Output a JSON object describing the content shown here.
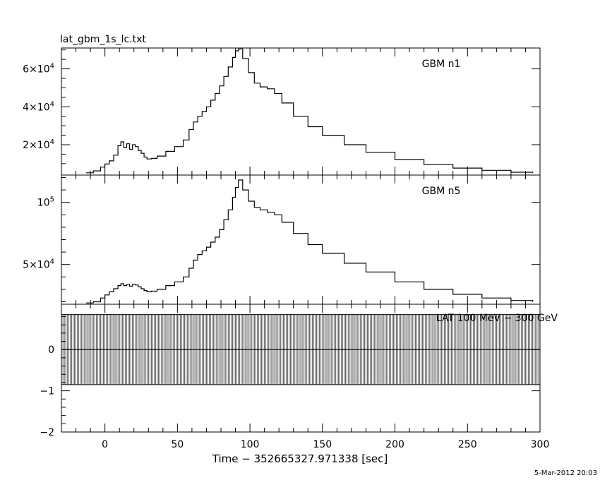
{
  "file_title": "lat_gbm_1s_lc.txt",
  "timestamp": "5-Mar-2012 20:03",
  "x_axis": {
    "label": "Time − 352665327.971338 [sec]",
    "range": [
      -30,
      300
    ],
    "ticks": [
      0,
      50,
      100,
      150,
      200,
      250,
      300
    ],
    "tick_labels": [
      "0",
      "50",
      "100",
      "150",
      "200",
      "250",
      "300"
    ]
  },
  "chart_data": [
    {
      "type": "line",
      "panel": "top",
      "legend": "GBM n1",
      "ylim": [
        4000,
        71000
      ],
      "yticks": [
        20000,
        40000,
        60000
      ],
      "ytick_labels": [
        {
          "mantissa": "2×10",
          "exp": "4"
        },
        {
          "mantissa": "4×10",
          "exp": "4"
        },
        {
          "mantissa": "6×10",
          "exp": "4"
        }
      ],
      "x": [
        -13,
        -8,
        -3,
        0,
        3,
        6,
        9,
        11,
        13,
        15,
        17,
        19,
        21,
        23,
        25,
        27,
        29,
        32,
        36,
        42,
        48,
        54,
        58,
        61,
        64,
        67,
        70,
        73,
        76,
        79,
        82,
        85,
        88,
        90,
        92,
        95,
        99,
        103,
        107,
        112,
        117,
        122,
        130,
        140,
        150,
        165,
        180,
        200,
        220,
        240,
        260,
        280,
        295
      ],
      "values": [
        5200,
        6200,
        8200,
        9800,
        11500,
        14500,
        19500,
        21500,
        18500,
        20500,
        17500,
        20000,
        19000,
        17000,
        15500,
        13500,
        12500,
        12800,
        14000,
        16500,
        19000,
        22500,
        28000,
        32000,
        35000,
        37500,
        40000,
        43500,
        47000,
        51000,
        56000,
        61000,
        66000,
        69500,
        70500,
        65500,
        58000,
        52500,
        50500,
        49500,
        47000,
        42000,
        35000,
        29500,
        25000,
        20000,
        16000,
        12200,
        9500,
        7700,
        6500,
        5500,
        5000
      ]
    },
    {
      "type": "line",
      "panel": "middle",
      "legend": "GBM n5",
      "ylim": [
        18000,
        122000
      ],
      "yticks": [
        50000,
        100000
      ],
      "ytick_labels": [
        {
          "mantissa": "5×10",
          "exp": "4"
        },
        {
          "mantissa": "10",
          "exp": "5"
        }
      ],
      "x": [
        -13,
        -8,
        -3,
        0,
        3,
        6,
        9,
        11,
        13,
        15,
        17,
        19,
        21,
        23,
        25,
        27,
        29,
        32,
        36,
        42,
        48,
        54,
        58,
        61,
        64,
        67,
        70,
        73,
        76,
        79,
        82,
        85,
        88,
        90,
        92,
        95,
        99,
        103,
        107,
        112,
        117,
        122,
        130,
        140,
        150,
        165,
        180,
        200,
        220,
        240,
        260,
        280,
        295
      ],
      "values": [
        19000,
        20000,
        23000,
        25500,
        28000,
        30500,
        33000,
        34500,
        33000,
        34000,
        32500,
        34000,
        33500,
        32000,
        30500,
        29000,
        28000,
        28500,
        30000,
        33000,
        36000,
        40000,
        47000,
        53500,
        58000,
        61000,
        64000,
        68000,
        72000,
        78000,
        86000,
        94000,
        104000,
        112000,
        118000,
        110000,
        101000,
        96000,
        94000,
        92000,
        90000,
        84000,
        75000,
        66000,
        59000,
        51000,
        44000,
        36000,
        30000,
        26000,
        23000,
        21000,
        20000
      ]
    },
    {
      "type": "line",
      "panel": "bottom",
      "legend": "LAT 100 MeV − 300 GeV",
      "ylim": [
        -2,
        1.1
      ],
      "yticks": [
        -2,
        -1,
        0
      ],
      "ytick_labels": [
        "−2",
        "−1",
        "0"
      ],
      "x": [
        -30,
        300
      ],
      "values": [
        0,
        0
      ],
      "band": [
        -0.85,
        0.85
      ]
    }
  ]
}
